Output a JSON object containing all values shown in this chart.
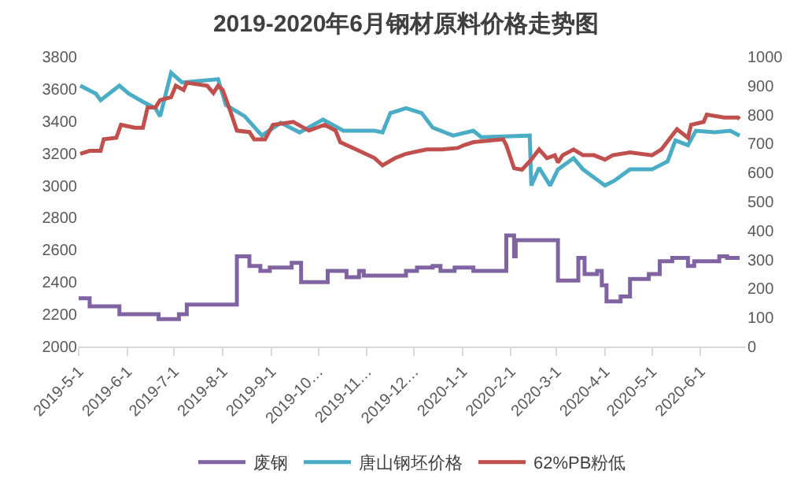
{
  "chart_data": {
    "type": "line",
    "title": "2019-2020年6月钢材原料价格走势图",
    "series": [
      {
        "name": "废钢",
        "type": "step",
        "color": "#8064a2",
        "x": [
          "2019-05-01",
          "2019-05-08",
          "2019-05-27",
          "2019-06-21",
          "2019-07-04",
          "2019-07-09",
          "2019-08-10",
          "2019-08-18",
          "2019-08-25",
          "2019-08-31",
          "2019-09-14",
          "2019-09-20",
          "2019-10-07",
          "2019-10-19",
          "2019-10-27",
          "2019-10-30",
          "2019-11-26",
          "2019-12-03",
          "2019-12-13",
          "2019-12-18",
          "2019-12-27",
          "2020-01-08",
          "2020-01-29",
          "2020-02-03",
          "2020-02-04",
          "2020-03-02",
          "2020-03-15",
          "2020-03-19",
          "2020-03-27",
          "2020-03-30",
          "2020-04-02",
          "2020-04-11",
          "2020-04-17",
          "2020-04-29",
          "2020-05-06",
          "2020-05-14",
          "2020-05-24",
          "2020-05-28",
          "2020-06-13",
          "2020-06-18",
          "2020-06-26"
        ],
        "values": [
          2300,
          2250,
          2200,
          2170,
          2200,
          2260,
          2560,
          2500,
          2470,
          2490,
          2520,
          2400,
          2470,
          2430,
          2470,
          2440,
          2470,
          2490,
          2500,
          2470,
          2490,
          2470,
          2690,
          2560,
          2660,
          2410,
          2550,
          2450,
          2470,
          2380,
          2280,
          2310,
          2420,
          2450,
          2530,
          2550,
          2500,
          2530,
          2560,
          2550,
          2550
        ]
      },
      {
        "name": "唐山钢坯价格",
        "color": "#4bacc6",
        "x": [
          "2019-05-02",
          "2019-05-12",
          "2019-05-15",
          "2019-05-27",
          "2019-06-02",
          "2019-06-11",
          "2019-06-19",
          "2019-06-22",
          "2019-06-29",
          "2019-07-06",
          "2019-07-29",
          "2019-08-03",
          "2019-08-15",
          "2019-08-26",
          "2019-09-07",
          "2019-09-19",
          "2019-10-04",
          "2019-10-17",
          "2019-11-06",
          "2019-11-11",
          "2019-11-16",
          "2019-11-26",
          "2019-12-06",
          "2019-12-13",
          "2019-12-26",
          "2020-01-08",
          "2020-01-13",
          "2020-02-13",
          "2020-02-14",
          "2020-02-19",
          "2020-02-26",
          "2020-03-02",
          "2020-03-12",
          "2020-03-18",
          "2020-04-01",
          "2020-04-07",
          "2020-04-17",
          "2020-05-01",
          "2020-05-11",
          "2020-05-16",
          "2020-05-24",
          "2020-05-29",
          "2020-06-10",
          "2020-06-20",
          "2020-06-26"
        ],
        "values": [
          3620,
          3570,
          3530,
          3620,
          3570,
          3520,
          3480,
          3430,
          3700,
          3640,
          3660,
          3500,
          3430,
          3310,
          3390,
          3330,
          3410,
          3340,
          3340,
          3330,
          3450,
          3480,
          3450,
          3360,
          3310,
          3340,
          3300,
          3310,
          3000,
          3110,
          3000,
          3100,
          3170,
          3100,
          3000,
          3030,
          3100,
          3100,
          3150,
          3280,
          3250,
          3340,
          3330,
          3340,
          3310
        ]
      },
      {
        "name": "62%PB粉低",
        "axis": "y2",
        "color": "#c0504d",
        "x": [
          "2019-05-02",
          "2019-05-08",
          "2019-05-15",
          "2019-05-17",
          "2019-05-25",
          "2019-05-28",
          "2019-06-06",
          "2019-06-11",
          "2019-06-14",
          "2019-06-19",
          "2019-06-22",
          "2019-06-29",
          "2019-07-02",
          "2019-07-07",
          "2019-07-09",
          "2019-07-22",
          "2019-07-26",
          "2019-07-29",
          "2019-08-01",
          "2019-08-05",
          "2019-08-10",
          "2019-08-18",
          "2019-08-21",
          "2019-08-28",
          "2019-09-02",
          "2019-09-15",
          "2019-09-25",
          "2019-10-05",
          "2019-10-12",
          "2019-10-15",
          "2019-10-27",
          "2019-11-06",
          "2019-11-11",
          "2019-11-19",
          "2019-11-26",
          "2019-12-09",
          "2019-12-19",
          "2019-12-29",
          "2020-01-02",
          "2020-01-08",
          "2020-01-27",
          "2020-01-29",
          "2020-02-03",
          "2020-02-08",
          "2020-02-14",
          "2020-02-19",
          "2020-02-24",
          "2020-02-29",
          "2020-03-02",
          "2020-03-05",
          "2020-03-12",
          "2020-03-18",
          "2020-03-25",
          "2020-04-01",
          "2020-04-06",
          "2020-04-17",
          "2020-05-01",
          "2020-05-07",
          "2020-05-17",
          "2020-05-24",
          "2020-05-26",
          "2020-06-03",
          "2020-06-05",
          "2020-06-16",
          "2020-06-25",
          "2020-06-26"
        ],
        "values": [
          665,
          675,
          675,
          715,
          720,
          765,
          755,
          755,
          825,
          825,
          850,
          860,
          900,
          885,
          910,
          900,
          875,
          900,
          885,
          825,
          745,
          740,
          715,
          715,
          765,
          775,
          745,
          765,
          745,
          705,
          675,
          650,
          625,
          650,
          665,
          680,
          680,
          685,
          695,
          705,
          715,
          695,
          615,
          610,
          645,
          680,
          650,
          660,
          635,
          660,
          680,
          660,
          660,
          645,
          660,
          670,
          660,
          680,
          750,
          720,
          765,
          775,
          800,
          790,
          790,
          785
        ]
      }
    ],
    "xlim": [
      "2019-05-01",
      "2020-06-30"
    ],
    "xticks": [
      {
        "value": "2019-05-01",
        "label": "2019-5-1"
      },
      {
        "value": "2019-06-01",
        "label": "2019-6-1"
      },
      {
        "value": "2019-07-01",
        "label": "2019-7-1"
      },
      {
        "value": "2019-08-01",
        "label": "2019-8-1"
      },
      {
        "value": "2019-09-01",
        "label": "2019-9-1"
      },
      {
        "value": "2019-10-01",
        "label": "2019-10…"
      },
      {
        "value": "2019-11-01",
        "label": "2019-11…"
      },
      {
        "value": "2019-12-01",
        "label": "2019-12…"
      },
      {
        "value": "2020-01-01",
        "label": "2020-1-1"
      },
      {
        "value": "2020-02-01",
        "label": "2020-2-1"
      },
      {
        "value": "2020-03-01",
        "label": "2020-3-1"
      },
      {
        "value": "2020-04-01",
        "label": "2020-4-1"
      },
      {
        "value": "2020-05-01",
        "label": "2020-5-1"
      },
      {
        "value": "2020-06-01",
        "label": "2020-6-1"
      }
    ],
    "ylim": [
      2000,
      3800
    ],
    "yticks": [
      2000,
      2200,
      2400,
      2600,
      2800,
      3000,
      3200,
      3400,
      3600,
      3800
    ],
    "y2lim": [
      0,
      1000
    ],
    "y2ticks": [
      0,
      100,
      200,
      300,
      400,
      500,
      600,
      700,
      800,
      900,
      1000
    ],
    "grid": false,
    "legend": "bottom"
  }
}
